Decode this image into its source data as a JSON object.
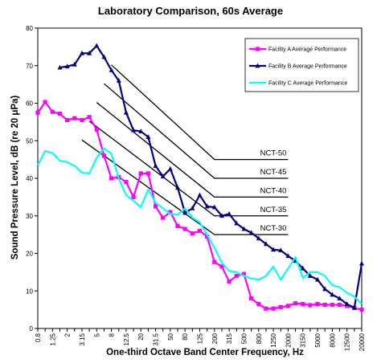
{
  "chart_data": {
    "type": "line",
    "title": "Laboratory Comparison, 60s Average",
    "xlabel": "One-third Octave Band Center Frequency, Hz",
    "ylabel": "Sound Pressure Level, dB (re 20 μPa)",
    "ylim": [
      0,
      80
    ],
    "yticks": [
      0,
      10,
      20,
      30,
      40,
      50,
      60,
      70,
      80
    ],
    "grid": false,
    "legend_position": "top-right",
    "categories": [
      "0.8",
      "1",
      "1.25",
      "1.6",
      "2",
      "2.5",
      "3.15",
      "4",
      "5",
      "6.3",
      "8",
      "10",
      "12.5",
      "16",
      "20",
      "25",
      "31.5",
      "40",
      "50",
      "63",
      "80",
      "100",
      "125",
      "160",
      "200",
      "250",
      "315",
      "400",
      "500",
      "630",
      "800",
      "1000",
      "1250",
      "1600",
      "2000",
      "2500",
      "3150",
      "4000",
      "5000",
      "6300",
      "8000",
      "10000",
      "12500",
      "16000",
      "20000"
    ],
    "tick_labels": [
      "0.8",
      "1.25",
      "2",
      "3.15",
      "5",
      "8",
      "12.5",
      "20",
      "31.5",
      "50",
      "80",
      "125",
      "200",
      "315",
      "500",
      "800",
      "1250",
      "2000",
      "3150",
      "5000",
      "8000",
      "12500",
      "20000"
    ],
    "series": [
      {
        "name": "Facility A Average Performance",
        "color": "#ff00ff",
        "marker": "square",
        "values": [
          57.5,
          60.3,
          57.7,
          57.2,
          55.5,
          56.0,
          55.5,
          56.3,
          53.0,
          46.0,
          40.0,
          40.3,
          39.0,
          35.0,
          41.3,
          41.3,
          32.5,
          29.5,
          31.0,
          27.3,
          26.5,
          25.3,
          26.0,
          24.5,
          17.7,
          16.5,
          12.5,
          14.0,
          14.5,
          8.0,
          6.5,
          5.3,
          5.3,
          5.7,
          6.0,
          6.7,
          6.5,
          6.2,
          6.5,
          6.3,
          6.3,
          6.3,
          6.0,
          5.5,
          5.0
        ]
      },
      {
        "name": "Facility B Average Performance",
        "color": "#00007f",
        "marker": "triangle",
        "values": [
          null,
          null,
          null,
          69.5,
          69.8,
          70.3,
          73.3,
          73.3,
          75.3,
          72.3,
          68.8,
          66.0,
          57.5,
          52.8,
          52.5,
          51.0,
          43.3,
          40.5,
          42.5,
          37.5,
          30.8,
          32.0,
          35.5,
          32.5,
          32.3,
          30.0,
          30.5,
          28.0,
          26.5,
          25.5,
          24.0,
          22.5,
          21.0,
          20.8,
          19.3,
          18.0,
          16.0,
          14.0,
          13.0,
          10.5,
          9.0,
          8.0,
          6.5,
          5.5,
          17.3
        ]
      },
      {
        "name": "Facility C Average Performance",
        "color": "#00ffff",
        "marker": "none",
        "values": [
          43.5,
          47.3,
          46.7,
          44.7,
          44.3,
          43.3,
          41.5,
          41.3,
          45.5,
          48.0,
          46.5,
          40.0,
          35.5,
          34.0,
          32.3,
          37.0,
          33.5,
          32.0,
          30.5,
          30.3,
          32.0,
          29.5,
          28.3,
          25.0,
          21.5,
          17.5,
          15.3,
          15.0,
          14.0,
          13.3,
          13.0,
          14.0,
          16.5,
          13.0,
          16.0,
          19.0,
          13.5,
          15.0,
          15.0,
          14.0,
          11.5,
          11.0,
          9.5,
          8.5,
          6.5
        ]
      }
    ],
    "nct_curves": [
      {
        "label": "NCT-50",
        "start_index": 10,
        "start_y": 70.2,
        "end_index": 24,
        "end_y": 45.0,
        "plateau_end_index": 34
      },
      {
        "label": "NCT-45",
        "start_index": 9,
        "start_y": 65.2,
        "end_index": 24,
        "end_y": 40.0,
        "plateau_end_index": 34
      },
      {
        "label": "NCT-40",
        "start_index": 8,
        "start_y": 60.2,
        "end_index": 24,
        "end_y": 35.0,
        "plateau_end_index": 34
      },
      {
        "label": "NCT-35",
        "start_index": 7,
        "start_y": 55.2,
        "end_index": 24,
        "end_y": 30.0,
        "plateau_end_index": 34
      },
      {
        "label": "NCT-30",
        "start_index": 6,
        "start_y": 50.2,
        "end_index": 24,
        "end_y": 25.0,
        "plateau_end_index": 34
      }
    ]
  }
}
